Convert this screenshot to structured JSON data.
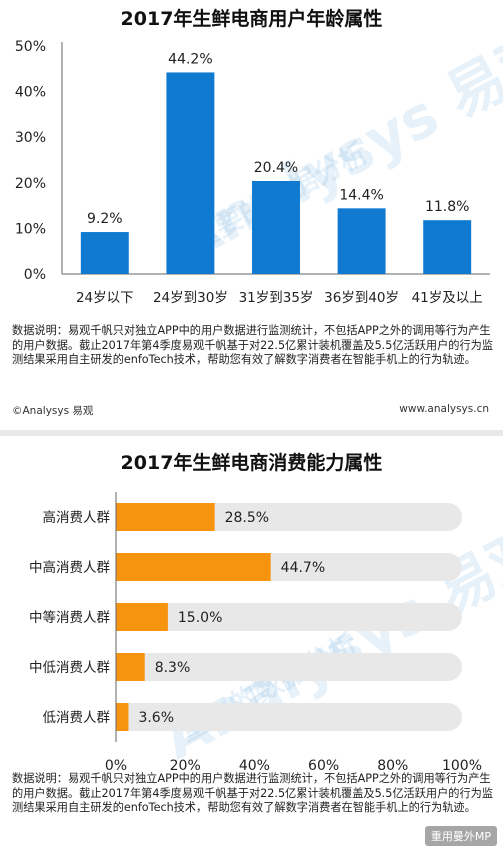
{
  "chart_data": [
    {
      "type": "bar",
      "title": "2017年生鲜电商用户年龄属性",
      "categories": [
        "24岁以下",
        "24岁到30岁",
        "31岁到35岁",
        "36岁到40岁",
        "41岁及以上"
      ],
      "values": [
        9.2,
        44.2,
        20.4,
        14.4,
        11.8
      ],
      "value_labels": [
        "9.2%",
        "44.2%",
        "20.4%",
        "14.4%",
        "11.8%"
      ],
      "y_ticks": [
        "0%",
        "10%",
        "20%",
        "30%",
        "40%",
        "50%"
      ],
      "ylim": [
        0,
        50
      ],
      "color": "#0f7ad0",
      "grid": false
    },
    {
      "type": "bar",
      "orientation": "horizontal",
      "title": "2017年生鲜电商消费能力属性",
      "categories": [
        "高消费人群",
        "中高消费人群",
        "中等消费人群",
        "中低消费人群",
        "低消费人群"
      ],
      "values": [
        28.5,
        44.7,
        15.0,
        8.3,
        3.6
      ],
      "value_labels": [
        "28.5%",
        "44.7%",
        "15.0%",
        "8.3%",
        "3.6%"
      ],
      "x_ticks": [
        "0%",
        "20%",
        "40%",
        "60%",
        "80%",
        "100%"
      ],
      "xlim": [
        0,
        100
      ],
      "color": "#f7940f",
      "track_color": "#e8e8e8",
      "grid": false
    }
  ],
  "notes": {
    "top": "数据说明：易观千帆只对独立APP中的用户数据进行监测统计，不包括APP之外的调用等行为产生的用户数据。截止2017年第4季度易观千帆基于对22.5亿累计装机覆盖及5.5亿活跃用户的行为监测结果采用自主研发的enfoTech技术，帮助您有效了解数字消费者在智能手机上的行为轨迹。",
    "bottom": "数据说明：易观千帆只对独立APP中的用户数据进行监测统计，不包括APP之外的调用等行为产生的用户数据。截止2017年第4季度易观千帆基于对22.5亿累计装机覆盖及5.5亿活跃用户的行为监测结果采用自主研发的enfoTech技术，帮助您有效了解数字消费者在智能手机上的行为轨迹。"
  },
  "footer": {
    "copyright": "©Analysys 易观",
    "url": "www.analysys.cn"
  },
  "watermark": {
    "brand": "Analysys 易观",
    "slogan": "重要的数据分析"
  },
  "badge": "重用曼外MP"
}
